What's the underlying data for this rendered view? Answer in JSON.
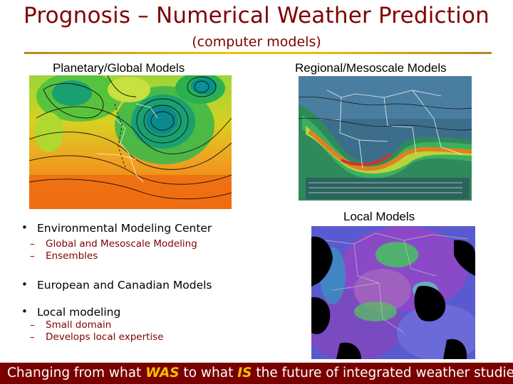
{
  "slide": {
    "title": "Prognosis – Numerical Weather Prediction",
    "subtitle": "(computer models)"
  },
  "columns": {
    "global_label": "Planetary/Global Models",
    "regional_label": "Regional/Mesoscale Models",
    "local_label": "Local Models"
  },
  "bullets": [
    {
      "text": "Environmental Modeling Center",
      "sub": [
        "Global and Mesoscale Modeling",
        "Ensembles"
      ]
    },
    {
      "text": "European and Canadian Models",
      "sub": []
    },
    {
      "text": "Local modeling",
      "sub": [
        "Small domain",
        "Develops local expertise"
      ]
    }
  ],
  "footer": {
    "part1": "Changing from what ",
    "em1": "WAS",
    "part2": " to what ",
    "em2": "IS",
    "part3": " the future of integrated weather studies"
  },
  "colors": {
    "title": "#800000",
    "footer_bg": "#7a0000",
    "footer_emphasis": "#f2c200",
    "rule": "#f0c000"
  }
}
